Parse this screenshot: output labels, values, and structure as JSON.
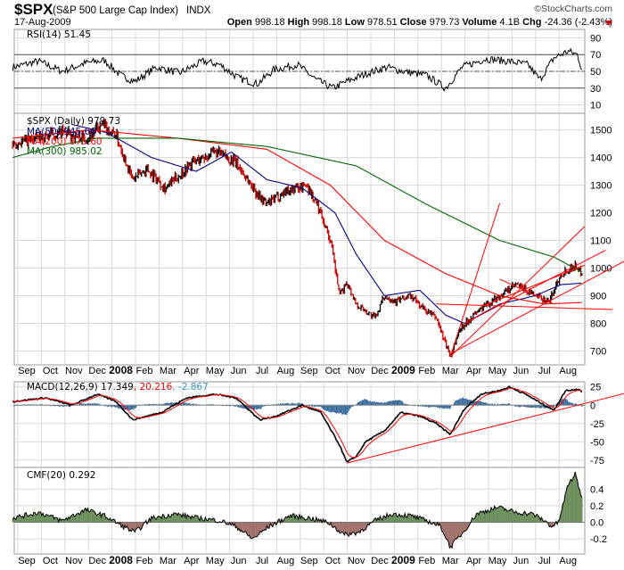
{
  "header": {
    "symbol": "$SPX",
    "name": "(S&P 500 Large Cap Index)",
    "exchange": "INDX",
    "copyright": "©StockCharts.com",
    "date": "17-Aug-2009",
    "open_label": "Open",
    "open": "998.18",
    "high_label": "High",
    "high": "998.18",
    "low_label": "Low",
    "low": "978.51",
    "close_label": "Close",
    "close": "979.73",
    "volume_label": "Volume",
    "volume": "4.1B",
    "chg_label": "Chg",
    "chg": "-24.36 (-2.43%)"
  },
  "colors": {
    "up": "#000000",
    "down": "#cc0000",
    "ma50": "#00008b",
    "ma200": "#ff0000",
    "ma300": "#006400",
    "macd_hist": "#336699",
    "cmf_pos": "#6b8e5a",
    "cmf_neg": "#a0706a",
    "grid": "#d8d8d8"
  },
  "chart_data": [
    {
      "type": "line",
      "title": "RSI(14) 51.45",
      "series_name": "RSI(14)",
      "last": 51.45,
      "ylim": [
        0,
        100
      ],
      "yticks": [
        "90",
        "70",
        "50",
        "30",
        "10"
      ],
      "yticks_values": [
        90,
        70,
        50,
        30,
        10
      ],
      "levels": [
        70,
        50,
        30
      ],
      "points": [
        [
          -0.6,
          55
        ],
        [
          0.5,
          62
        ],
        [
          1.5,
          50
        ],
        [
          2.5,
          60
        ],
        [
          3.3,
          63
        ],
        [
          4,
          45
        ],
        [
          4.6,
          38
        ],
        [
          5.5,
          55
        ],
        [
          6.5,
          48
        ],
        [
          7.5,
          62
        ],
        [
          8.2,
          58
        ],
        [
          9,
          42
        ],
        [
          9.8,
          35
        ],
        [
          10.5,
          52
        ],
        [
          11.5,
          58
        ],
        [
          12.3,
          40
        ],
        [
          13,
          30
        ],
        [
          13.6,
          38
        ],
        [
          14.5,
          48
        ],
        [
          15.3,
          55
        ],
        [
          16,
          50
        ],
        [
          17,
          45
        ],
        [
          17.8,
          30
        ],
        [
          18.5,
          55
        ],
        [
          19.5,
          65
        ],
        [
          20.5,
          62
        ],
        [
          21.3,
          58
        ],
        [
          21.8,
          40
        ],
        [
          22.4,
          66
        ],
        [
          23,
          74
        ],
        [
          23.4,
          70
        ],
        [
          23.6,
          51.45
        ]
      ]
    },
    {
      "type": "ohlc",
      "title": "$SPX (Daily) 979.73",
      "ylim": [
        650,
        1560
      ],
      "yticks": [
        "1500",
        "1400",
        "1300",
        "1200",
        "1100",
        "1000",
        "900",
        "800",
        "700"
      ],
      "yticks_values": [
        1500,
        1400,
        1300,
        1200,
        1100,
        1000,
        900,
        800,
        700
      ],
      "x_unit": "months since Sep 2007",
      "close": [
        [
          -0.6,
          1450
        ],
        [
          0.4,
          1470
        ],
        [
          1.5,
          1490
        ],
        [
          2.5,
          1470
        ],
        [
          3.2,
          1515
        ],
        [
          3.8,
          1480
        ],
        [
          4.5,
          1320
        ],
        [
          5.1,
          1360
        ],
        [
          5.9,
          1290
        ],
        [
          6.4,
          1330
        ],
        [
          7,
          1380
        ],
        [
          8,
          1420
        ],
        [
          8.5,
          1400
        ],
        [
          8.9,
          1380
        ],
        [
          9.7,
          1280
        ],
        [
          10.2,
          1230
        ],
        [
          11,
          1280
        ],
        [
          11.9,
          1300
        ],
        [
          12.5,
          1200
        ],
        [
          12.9,
          1100
        ],
        [
          13.3,
          900
        ],
        [
          13.6,
          950
        ],
        [
          14,
          870
        ],
        [
          14.8,
          820
        ],
        [
          15.2,
          900
        ],
        [
          15.7,
          880
        ],
        [
          16.3,
          900
        ],
        [
          16.9,
          850
        ],
        [
          17.4,
          820
        ],
        [
          18,
          680
        ],
        [
          18.4,
          780
        ],
        [
          19.1,
          840
        ],
        [
          20.1,
          900
        ],
        [
          20.8,
          940
        ],
        [
          21.6,
          900
        ],
        [
          22.2,
          880
        ],
        [
          22.7,
          980
        ],
        [
          23.3,
          1010
        ],
        [
          23.6,
          979.73
        ]
      ],
      "series": [
        {
          "name": "MA(50)",
          "label": "MA(50) 945.66",
          "last": 945.66,
          "points": [
            [
              1.9,
              1520
            ],
            [
              3.4,
              1490
            ],
            [
              5.3,
              1400
            ],
            [
              7.2,
              1350
            ],
            [
              8.7,
              1420
            ],
            [
              10.2,
              1320
            ],
            [
              11.7,
              1290
            ],
            [
              13.1,
              1200
            ],
            [
              14,
              1050
            ],
            [
              15.2,
              900
            ],
            [
              16.7,
              920
            ],
            [
              17.8,
              830
            ],
            [
              18.6,
              800
            ],
            [
              20.1,
              870
            ],
            [
              21.6,
              900
            ],
            [
              22.7,
              940
            ],
            [
              23.6,
              945.66
            ]
          ]
        },
        {
          "name": "MA(200)",
          "label": "MA(200) 875.60",
          "last": 875.6,
          "points": [
            [
              -0.6,
              1470
            ],
            [
              2.7,
              1500
            ],
            [
              6.4,
              1470
            ],
            [
              10.2,
              1430
            ],
            [
              12.9,
              1300
            ],
            [
              15.2,
              1100
            ],
            [
              17.8,
              980
            ],
            [
              20.1,
              900
            ],
            [
              22,
              870
            ],
            [
              23.6,
              875.6
            ]
          ]
        },
        {
          "name": "MA(300)",
          "label": "MA(300) 985.02",
          "last": 985.02,
          "points": [
            [
              -0.6,
              1400
            ],
            [
              1.1,
              1440
            ],
            [
              3,
              1470
            ],
            [
              6.4,
              1470
            ],
            [
              10.2,
              1440
            ],
            [
              14,
              1370
            ],
            [
              17,
              1230
            ],
            [
              20.1,
              1100
            ],
            [
              22.4,
              1040
            ],
            [
              23.6,
              985.02
            ]
          ]
        }
      ],
      "trendlines": [
        [
          [
            18,
            680
          ],
          [
            20.1,
            1235
          ]
        ],
        [
          [
            18,
            680
          ],
          [
            23.7,
            1150
          ]
        ],
        [
          [
            18,
            690
          ],
          [
            25.4,
            1025
          ]
        ],
        [
          [
            18.6,
            800
          ],
          [
            24.6,
            1065
          ]
        ],
        [
          [
            19.3,
            860
          ],
          [
            23.7,
            1010
          ]
        ],
        [
          [
            17.4,
            870
          ],
          [
            24.9,
            850
          ]
        ],
        [
          [
            20.1,
            960
          ],
          [
            22.4,
            870
          ]
        ]
      ]
    },
    {
      "type": "line",
      "title": "MACD(12,26,9) 17.349, 20.216, -2.867",
      "macd_label": "MACD(12,26,9) 17.349",
      "signal_label": ", 20.216",
      "hist_label": ", -2.867",
      "macd": 17.349,
      "signal": 20.216,
      "histogram": -2.867,
      "ylim": [
        -85,
        32
      ],
      "yticks": [
        "25",
        "0",
        "-25",
        "-50",
        "-75"
      ],
      "yticks_values": [
        25,
        0,
        -25,
        -50,
        -75
      ],
      "points": [
        [
          -0.6,
          5
        ],
        [
          0.8,
          10
        ],
        [
          1.9,
          0
        ],
        [
          3.0,
          15
        ],
        [
          3.8,
          5
        ],
        [
          4.5,
          -20
        ],
        [
          5.7,
          -10
        ],
        [
          6.8,
          10
        ],
        [
          8,
          15
        ],
        [
          8.9,
          10
        ],
        [
          9.9,
          -20
        ],
        [
          10.6,
          -15
        ],
        [
          11.7,
          0
        ],
        [
          12.5,
          -10
        ],
        [
          13.3,
          -55
        ],
        [
          13.6,
          -78
        ],
        [
          14,
          -70
        ],
        [
          14.4,
          -50
        ],
        [
          15.2,
          -35
        ],
        [
          15.9,
          -10
        ],
        [
          16.7,
          -15
        ],
        [
          17.4,
          -25
        ],
        [
          18,
          -40
        ],
        [
          18.6,
          -5
        ],
        [
          19.3,
          15
        ],
        [
          20.1,
          20
        ],
        [
          20.5,
          25
        ],
        [
          21.2,
          15
        ],
        [
          22,
          0
        ],
        [
          22.4,
          -7
        ],
        [
          22.9,
          20
        ],
        [
          23.5,
          22
        ],
        [
          23.6,
          17.349
        ]
      ],
      "trendline": [
        [
          13.6,
          -79
        ],
        [
          25.4,
          16
        ]
      ]
    },
    {
      "type": "area",
      "title": "CMF(20) 0.292",
      "last": 0.292,
      "ylim": [
        -0.38,
        0.66
      ],
      "yticks": [
        "0.4",
        "0.2",
        "0.0",
        "-0.2"
      ],
      "yticks_values": [
        0.4,
        0.2,
        0,
        -0.2
      ],
      "points": [
        [
          -0.6,
          0.05
        ],
        [
          0.5,
          0.12
        ],
        [
          1.5,
          0.02
        ],
        [
          2.5,
          0.15
        ],
        [
          3.3,
          0.08
        ],
        [
          4.1,
          -0.05
        ],
        [
          4.6,
          -0.12
        ],
        [
          5.3,
          0.05
        ],
        [
          6.3,
          0.1
        ],
        [
          7.3,
          0.05
        ],
        [
          8.2,
          0.02
        ],
        [
          8.9,
          -0.05
        ],
        [
          9.6,
          -0.2
        ],
        [
          10.3,
          -0.05
        ],
        [
          11.2,
          0.08
        ],
        [
          12,
          0.05
        ],
        [
          12.8,
          0.0
        ],
        [
          13.5,
          -0.15
        ],
        [
          14.1,
          -0.12
        ],
        [
          14.8,
          0.02
        ],
        [
          15.5,
          0.1
        ],
        [
          16.3,
          0.08
        ],
        [
          17,
          0.02
        ],
        [
          17.6,
          -0.05
        ],
        [
          18,
          -0.3
        ],
        [
          18.6,
          -0.1
        ],
        [
          19.1,
          0.1
        ],
        [
          20,
          0.18
        ],
        [
          20.8,
          0.12
        ],
        [
          21.5,
          0.1
        ],
        [
          22,
          0.02
        ],
        [
          22.3,
          -0.05
        ],
        [
          22.6,
          0.0
        ],
        [
          23,
          0.45
        ],
        [
          23.3,
          0.58
        ],
        [
          23.6,
          0.292
        ]
      ]
    }
  ],
  "x_axis": {
    "labels": [
      "Sep",
      "Oct",
      "Nov",
      "Dec",
      "2008",
      "Feb",
      "Mar",
      "Apr",
      "May",
      "Jun",
      "Jul",
      "Aug",
      "Sep",
      "Oct",
      "Nov",
      "Dec",
      "2009",
      "Feb",
      "Mar",
      "Apr",
      "May",
      "Jun",
      "Jul",
      "Aug"
    ]
  }
}
